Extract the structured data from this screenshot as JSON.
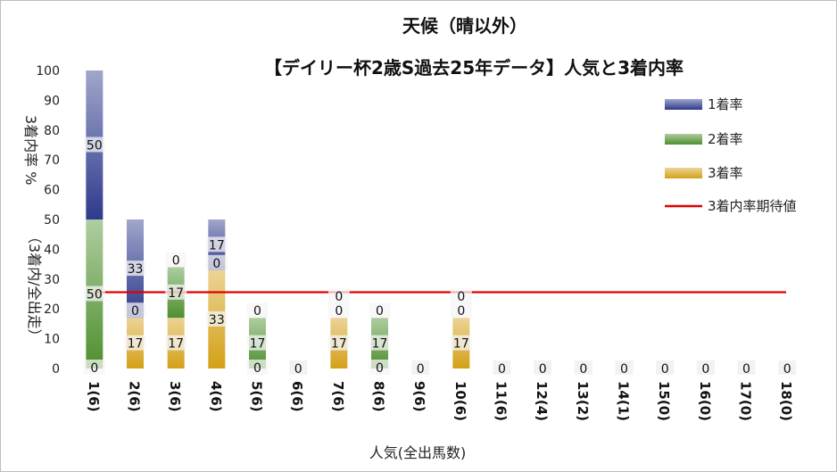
{
  "chart_data": {
    "type": "bar",
    "stacked": true,
    "title": "天候（晴以外）",
    "subtitle": "【デイリー杯2歳S過去25年データ】人気と3着内率",
    "xlabel": "人気(全出馬数)",
    "ylabel_main": "3着内率 %",
    "ylabel_sub": "（3着内/全出走）",
    "ylim": [
      0,
      100
    ],
    "yticks": [
      0,
      10,
      20,
      30,
      40,
      50,
      60,
      70,
      80,
      90,
      100
    ],
    "categories": [
      "1(6)",
      "2(6)",
      "3(6)",
      "4(6)",
      "5(6)",
      "6(6)",
      "7(6)",
      "8(6)",
      "9(6)",
      "10(6)",
      "11(6)",
      "12(4)",
      "13(2)",
      "14(1)",
      "15(0)",
      "16(0)",
      "17(0)",
      "18(0)"
    ],
    "series": [
      {
        "name": "3着率",
        "color": "#d4a017",
        "values": [
          0,
          17,
          17,
          33,
          0,
          0,
          17,
          0,
          0,
          17,
          0,
          0,
          0,
          0,
          0,
          0,
          0,
          0
        ]
      },
      {
        "name": "2着率",
        "color": "#4e8f2e",
        "values": [
          50,
          0,
          17,
          0,
          17,
          0,
          0,
          17,
          0,
          0,
          0,
          0,
          0,
          0,
          0,
          0,
          0,
          0
        ]
      },
      {
        "name": "1着率",
        "color": "#2e3a8c",
        "values": [
          50,
          33,
          0,
          17,
          0,
          0,
          0,
          0,
          0,
          0,
          0,
          0,
          0,
          0,
          0,
          0,
          0,
          0
        ]
      }
    ],
    "expected_line": {
      "name": "3着内率期待値",
      "color": "#e00000",
      "value": 25.6
    },
    "legend_position": "right",
    "grid": false
  }
}
